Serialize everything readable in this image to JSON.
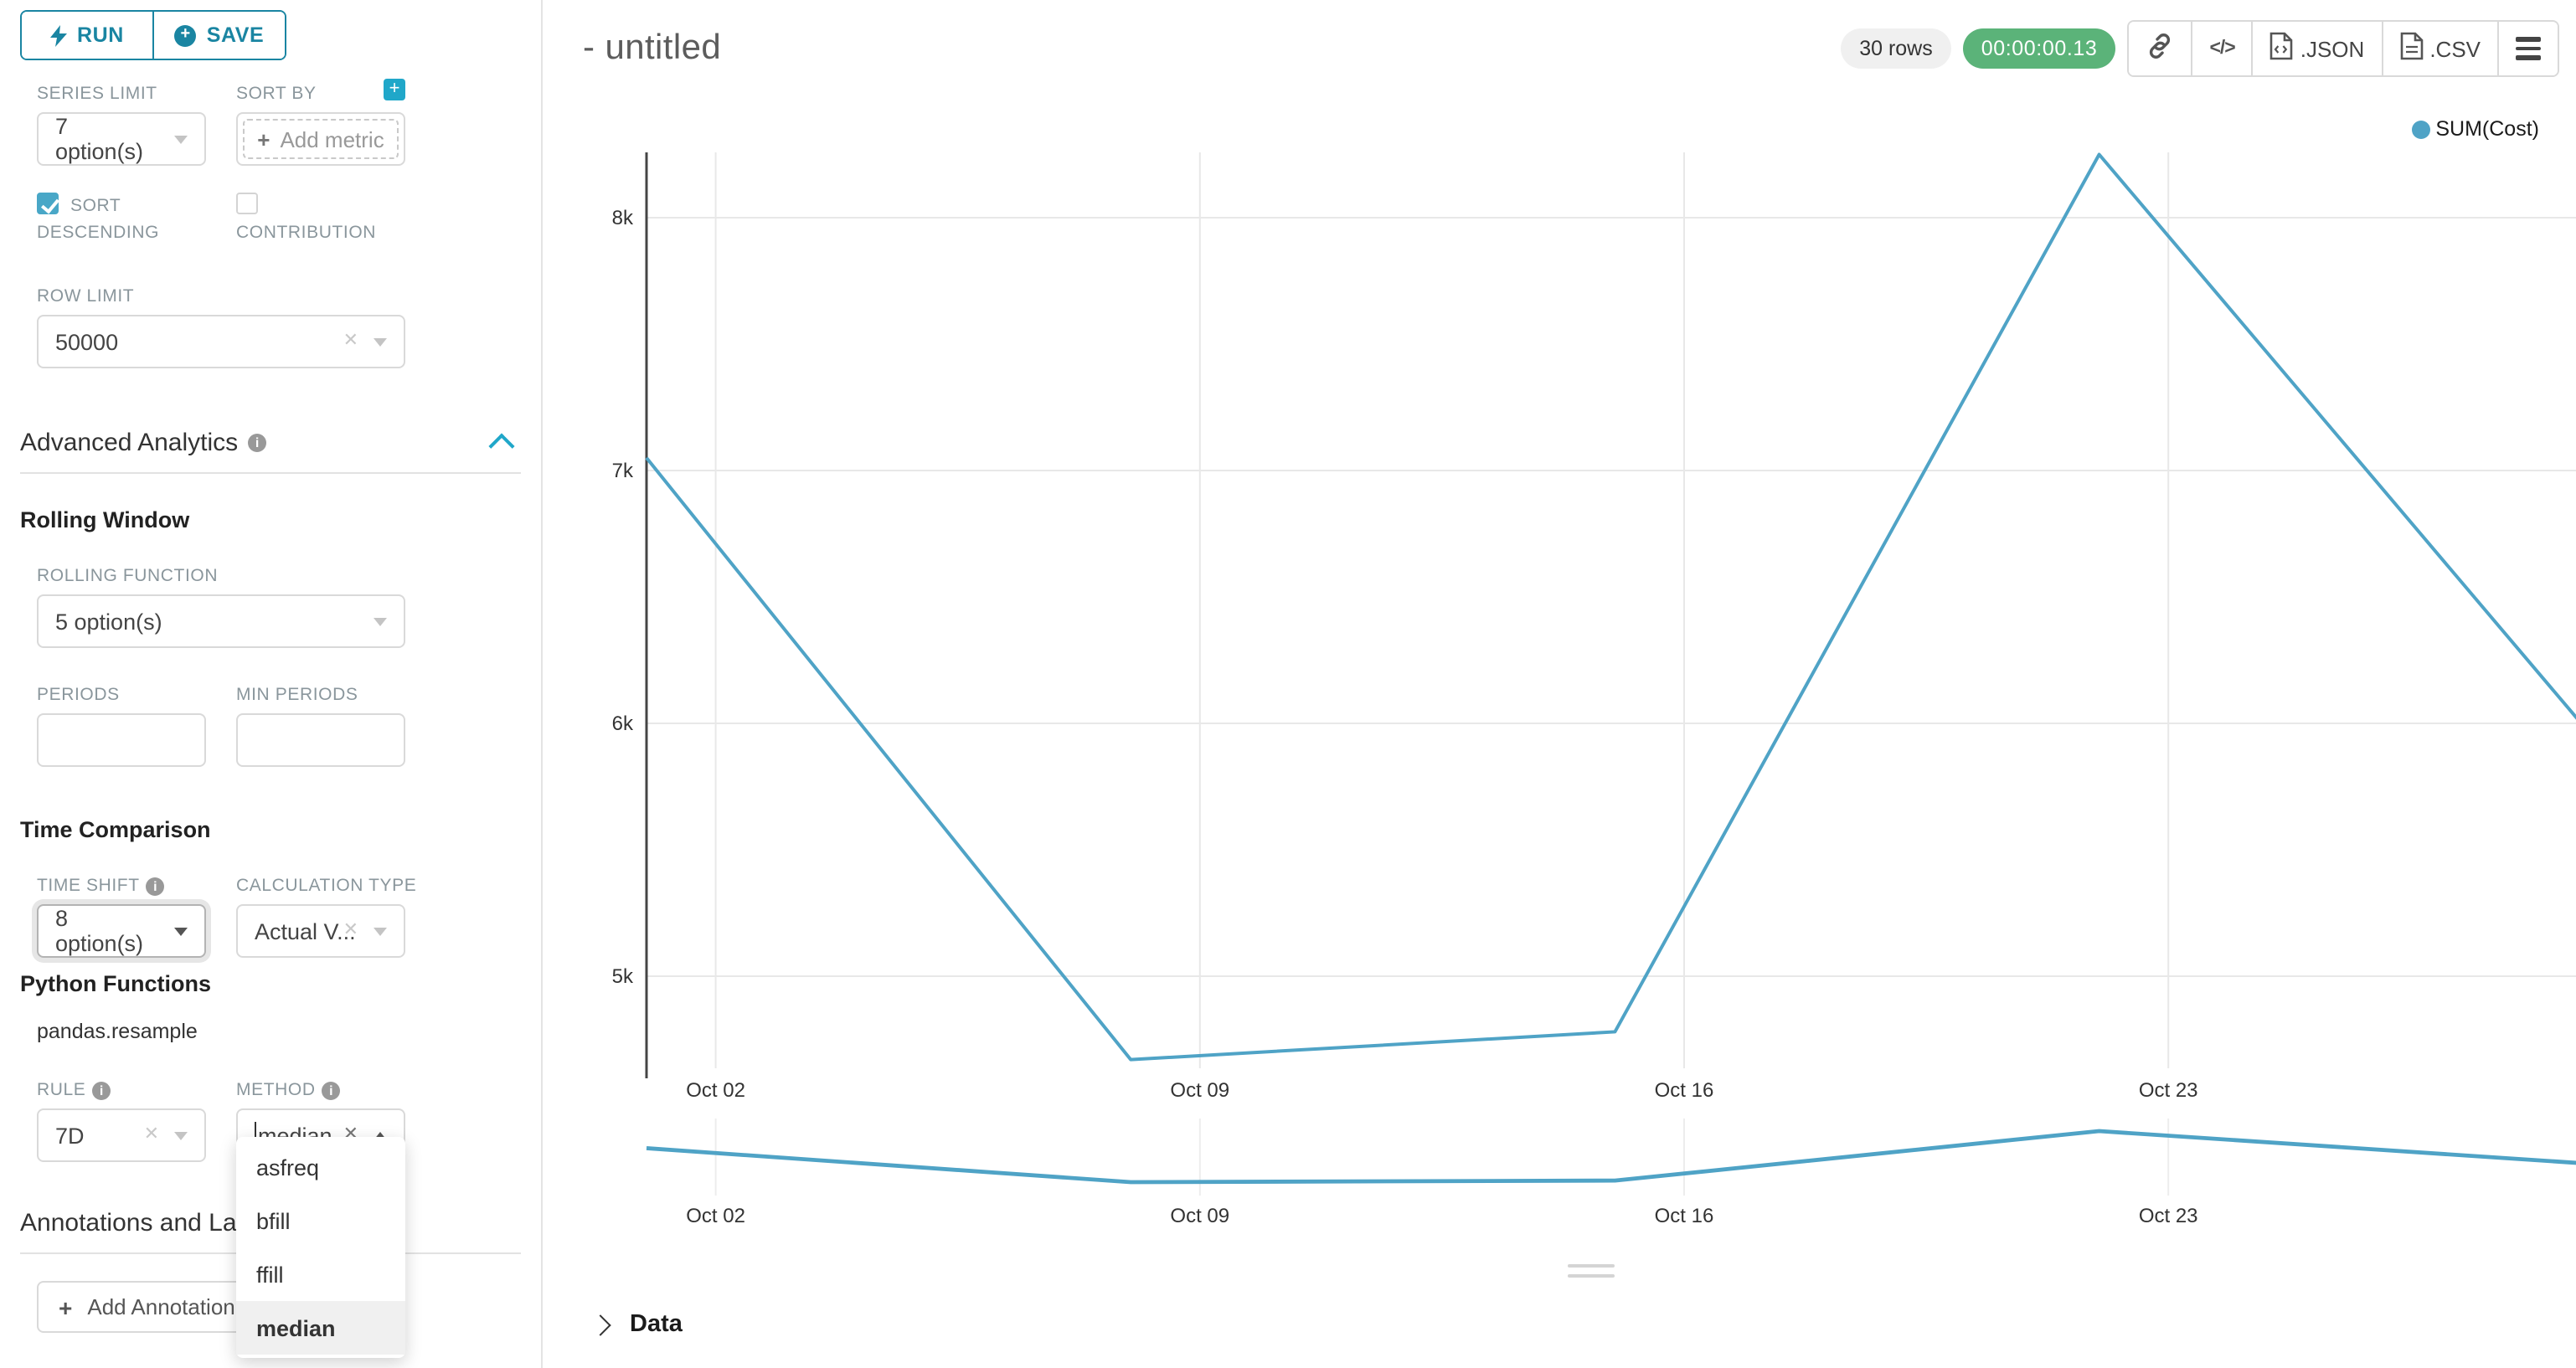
{
  "left_panel": {
    "run_label": "RUN",
    "save_label": "SAVE",
    "series_limit": {
      "label": "SERIES LIMIT",
      "value": "7 option(s)"
    },
    "sort_by": {
      "label": "SORT BY",
      "add_metric_label": "Add metric",
      "plus": "+"
    },
    "sort_descending": {
      "label": "SORT DESCENDING",
      "checked": true
    },
    "contribution": {
      "label": "CONTRIBUTION",
      "checked": false
    },
    "row_limit": {
      "label": "ROW LIMIT",
      "value": "50000"
    },
    "advanced_analytics_title": "Advanced Analytics",
    "rolling_window_title": "Rolling Window",
    "rolling_function": {
      "label": "ROLLING FUNCTION",
      "value": "5 option(s)"
    },
    "periods": {
      "label": "PERIODS",
      "value": ""
    },
    "min_periods": {
      "label": "MIN PERIODS",
      "value": ""
    },
    "time_comparison_title": "Time Comparison",
    "time_shift": {
      "label": "TIME SHIFT",
      "value": "8 option(s)"
    },
    "calculation_type": {
      "label": "CALCULATION TYPE",
      "value": "Actual V..."
    },
    "python_functions_title": "Python Functions",
    "pandas_resample_label": "pandas.resample",
    "rule": {
      "label": "RULE",
      "value": "7D"
    },
    "method": {
      "label": "METHOD",
      "value": "median",
      "options": [
        "asfreq",
        "bfill",
        "ffill",
        "median"
      ],
      "selected": "median"
    },
    "annotations_title": "Annotations and Layers",
    "add_annotation_label": "Add Annotation Layer"
  },
  "header": {
    "title": "- untitled",
    "rows_badge": "30 rows",
    "timer": "00:00:00.13",
    "json_button": ".JSON",
    "csv_button": ".CSV",
    "code_glyph": "</>"
  },
  "data_panel": {
    "label": "Data"
  },
  "colors": {
    "line": "#4fa3c6",
    "accent_teal": "#20a7c9",
    "dark_teal": "#1a85a2",
    "timer_green": "#5bb379",
    "gridline": "#e8e8e8",
    "axis": "#454545"
  },
  "chart_data": {
    "type": "line",
    "title": "- untitled",
    "legend": [
      {
        "name": "SUM(Cost)",
        "color": "#4fa3c6"
      }
    ],
    "xlabel": "",
    "ylabel": "",
    "series": [
      {
        "name": "SUM(Cost)",
        "point_days": [
          0,
          7,
          14,
          21,
          28
        ],
        "point_dates_approx": [
          "Oct 01",
          "Oct 08",
          "Oct 15",
          "Oct 22",
          "Oct 29"
        ],
        "values": [
          7050,
          4670,
          4780,
          8250,
          5990
        ]
      }
    ],
    "x_ticks": [
      {
        "label": "Oct 02",
        "day": 1
      },
      {
        "label": "Oct 09",
        "day": 8
      },
      {
        "label": "Oct 16",
        "day": 15
      },
      {
        "label": "Oct 23",
        "day": 22
      }
    ],
    "y_ticks": [
      {
        "label": "8k",
        "value": 8000
      },
      {
        "label": "7k",
        "value": 7000
      },
      {
        "label": "6k",
        "value": 6000
      },
      {
        "label": "5k",
        "value": 5000
      }
    ],
    "grid": true,
    "legend_position": "top-right",
    "has_minimap": true
  }
}
